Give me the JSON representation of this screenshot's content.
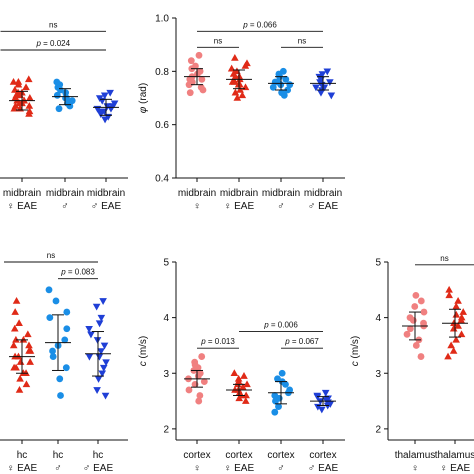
{
  "colors": {
    "female_hc": "#f08080",
    "female_eae": "#e02a17",
    "male_hc": "#1a8ee6",
    "male_eae": "#1f3fd6"
  },
  "chart_data": [
    {
      "id": "A",
      "type": "scatter",
      "tissue": "midbrain",
      "categories": [
        {
          "line1": "midbrain",
          "line2": "♀ EAE",
          "marker": "triangle",
          "color": "#e02a17",
          "mean": 0.69,
          "sd": 0.035,
          "values": [
            0.64,
            0.65,
            0.66,
            0.66,
            0.67,
            0.67,
            0.68,
            0.68,
            0.69,
            0.69,
            0.7,
            0.7,
            0.71,
            0.71,
            0.72,
            0.72,
            0.73,
            0.74,
            0.75,
            0.76,
            0.76,
            0.77
          ]
        },
        {
          "line1": "midbrain",
          "line2": "♂",
          "marker": "circle",
          "color": "#1a8ee6",
          "mean": 0.705,
          "sd": 0.03,
          "values": [
            0.66,
            0.67,
            0.68,
            0.69,
            0.7,
            0.7,
            0.71,
            0.72,
            0.73,
            0.74,
            0.75,
            0.76
          ]
        },
        {
          "line1": "midbrain",
          "line2": "♂ EAE",
          "marker": "triangle-down",
          "color": "#1f3fd6",
          "mean": 0.665,
          "sd": 0.03,
          "values": [
            0.62,
            0.63,
            0.64,
            0.65,
            0.65,
            0.66,
            0.66,
            0.67,
            0.67,
            0.68,
            0.69,
            0.7,
            0.71,
            0.72
          ]
        }
      ],
      "brackets": [
        {
          "label": "ns",
          "from": -0.5,
          "to": 2,
          "y": 0.95
        },
        {
          "label_italic": "p",
          "label": " = 0.024",
          "from": -0.5,
          "to": 2,
          "y": 0.88
        }
      ]
    },
    {
      "id": "B",
      "type": "scatter",
      "ylabel_italic": "φ",
      "ylabel": " (rad)",
      "ylim": [
        0.4,
        1.0
      ],
      "yticks": [
        "0.4",
        "0.6",
        "0.8",
        "1.0"
      ],
      "categories": [
        {
          "line1": "midbrain",
          "line2": "♀",
          "marker": "circle",
          "color": "#f08080",
          "mean": 0.78,
          "sd": 0.03,
          "values": [
            0.72,
            0.73,
            0.74,
            0.75,
            0.76,
            0.77,
            0.77,
            0.78,
            0.79,
            0.8,
            0.81,
            0.82,
            0.84,
            0.86
          ]
        },
        {
          "line1": "midbrain",
          "line2": "♀ EAE",
          "marker": "triangle",
          "color": "#e02a17",
          "mean": 0.77,
          "sd": 0.035,
          "values": [
            0.7,
            0.71,
            0.72,
            0.73,
            0.74,
            0.75,
            0.75,
            0.76,
            0.76,
            0.77,
            0.78,
            0.78,
            0.79,
            0.8,
            0.81,
            0.82,
            0.83,
            0.85
          ]
        },
        {
          "line1": "midbrain",
          "line2": "♂",
          "marker": "circle",
          "color": "#1a8ee6",
          "mean": 0.755,
          "sd": 0.025,
          "values": [
            0.71,
            0.72,
            0.73,
            0.74,
            0.75,
            0.75,
            0.76,
            0.76,
            0.77,
            0.78,
            0.79,
            0.8
          ]
        },
        {
          "line1": "midbrain",
          "line2": "♂ EAE",
          "marker": "triangle-down",
          "color": "#1f3fd6",
          "mean": 0.755,
          "sd": 0.025,
          "values": [
            0.71,
            0.72,
            0.73,
            0.74,
            0.74,
            0.75,
            0.76,
            0.76,
            0.77,
            0.78,
            0.79,
            0.8
          ]
        }
      ],
      "brackets": [
        {
          "label_italic": "p",
          "label": " = 0.066",
          "from": 0,
          "to": 3,
          "y": 0.95
        },
        {
          "label": "ns",
          "from": 0,
          "to": 1,
          "y": 0.89
        },
        {
          "label": "ns",
          "from": 2,
          "to": 3,
          "y": 0.89
        }
      ]
    },
    {
      "id": "C",
      "type": "scatter",
      "tissue": "hc",
      "categories": [
        {
          "line1": "hc",
          "line2": "♀ EAE",
          "marker": "triangle",
          "color": "#e02a17",
          "mean": 3.3,
          "sd": 0.3,
          "values": [
            2.7,
            2.8,
            2.9,
            3.0,
            3.0,
            3.1,
            3.1,
            3.2,
            3.2,
            3.3,
            3.3,
            3.4,
            3.4,
            3.5,
            3.5,
            3.6,
            3.6,
            3.7,
            3.8,
            3.9,
            4.1,
            4.3
          ]
        },
        {
          "line1": "hc",
          "line2": "♂",
          "marker": "circle",
          "color": "#1a8ee6",
          "mean": 3.55,
          "sd": 0.5,
          "values": [
            2.6,
            2.9,
            3.1,
            3.3,
            3.4,
            3.5,
            3.6,
            3.8,
            4.0,
            4.1,
            4.3,
            4.5
          ]
        },
        {
          "line1": "hc",
          "line2": "♂ EAE",
          "marker": "triangle-down",
          "color": "#1f3fd6",
          "mean": 3.35,
          "sd": 0.4,
          "values": [
            2.6,
            2.7,
            2.9,
            3.0,
            3.1,
            3.2,
            3.3,
            3.3,
            3.4,
            3.5,
            3.6,
            3.7,
            3.8,
            3.9,
            4.0,
            4.2,
            4.3
          ]
        }
      ],
      "brackets": [
        {
          "label": "ns",
          "from": -0.5,
          "to": 2,
          "y": 5.0
        },
        {
          "label_italic": "p",
          "label": " = 0.083",
          "from": 1,
          "to": 2,
          "y": 4.7
        }
      ]
    },
    {
      "id": "D",
      "type": "scatter",
      "ylabel_italic": "c",
      "ylabel": " (m/s)",
      "ylim": [
        1.8,
        5.0
      ],
      "yticks": [
        "2",
        "3",
        "4",
        "5"
      ],
      "categories": [
        {
          "line1": "cortex",
          "line2": "♀",
          "marker": "circle",
          "color": "#f08080",
          "mean": 2.9,
          "sd": 0.15,
          "values": [
            2.5,
            2.6,
            2.7,
            2.8,
            2.85,
            2.9,
            2.95,
            3.0,
            3.05,
            3.1,
            3.15,
            3.2,
            3.3
          ]
        },
        {
          "line1": "cortex",
          "line2": "♀ EAE",
          "marker": "triangle",
          "color": "#e02a17",
          "mean": 2.7,
          "sd": 0.1,
          "values": [
            2.5,
            2.55,
            2.6,
            2.6,
            2.65,
            2.7,
            2.7,
            2.75,
            2.8,
            2.8,
            2.85,
            2.9,
            2.95,
            3.0
          ]
        },
        {
          "line1": "cortex",
          "line2": "♂",
          "marker": "circle",
          "color": "#1a8ee6",
          "mean": 2.65,
          "sd": 0.2,
          "values": [
            2.3,
            2.4,
            2.5,
            2.55,
            2.6,
            2.65,
            2.7,
            2.8,
            2.85,
            2.9,
            3.0
          ]
        },
        {
          "line1": "cortex",
          "line2": "♂ EAE",
          "marker": "triangle-down",
          "color": "#1f3fd6",
          "mean": 2.5,
          "sd": 0.08,
          "values": [
            2.35,
            2.4,
            2.42,
            2.45,
            2.48,
            2.5,
            2.52,
            2.55,
            2.58,
            2.6,
            2.65
          ]
        }
      ],
      "brackets": [
        {
          "label_italic": "p",
          "label": " = 0.006",
          "from": 1,
          "to": 3,
          "y": 3.75
        },
        {
          "label_italic": "p",
          "label": " = 0.013",
          "from": 0,
          "to": 1,
          "y": 3.45
        },
        {
          "label_italic": "p",
          "label": " = 0.067",
          "from": 2,
          "to": 3,
          "y": 3.45
        }
      ]
    },
    {
      "id": "E",
      "type": "scatter",
      "ylabel_italic": "c",
      "ylabel": " (m/s)",
      "ylim": [
        1.8,
        5.0
      ],
      "yticks": [
        "2",
        "3",
        "4",
        "5"
      ],
      "categories": [
        {
          "line1": "thalamus",
          "line2": "♀",
          "marker": "circle",
          "color": "#f08080",
          "mean": 3.85,
          "sd": 0.25,
          "values": [
            3.3,
            3.5,
            3.6,
            3.7,
            3.8,
            3.85,
            3.9,
            3.95,
            4.0,
            4.1,
            4.2,
            4.3,
            4.4
          ]
        },
        {
          "line1": "thalamus",
          "line2": "♀ EAE",
          "marker": "triangle",
          "color": "#e02a17",
          "mean": 3.9,
          "sd": 0.25,
          "values": [
            3.3,
            3.4,
            3.5,
            3.6,
            3.7,
            3.8,
            3.85,
            3.9,
            3.95,
            4.0,
            4.05,
            4.1,
            4.2,
            4.3,
            4.4,
            4.5
          ]
        }
      ],
      "brackets": [
        {
          "label": "ns",
          "from": 0,
          "to": 1.6,
          "y": 4.95
        }
      ]
    }
  ]
}
